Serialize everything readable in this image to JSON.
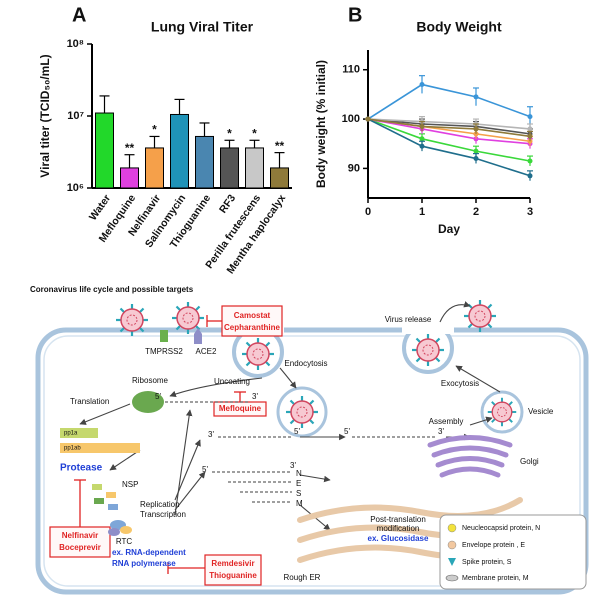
{
  "chart_data": [
    {
      "type": "bar",
      "panel": "A",
      "title": "Lung Viral Titer",
      "y_label": "Viral titer (TCID₅₀/mL)",
      "categories": [
        "Water",
        "Mefloquine",
        "Nelfinavir",
        "Salinomycin",
        "Thioguanine",
        "RF3",
        "Perilla frutescens",
        "Mentha haplocalyx"
      ],
      "values": [
        11000000,
        1900000,
        3600000,
        10500000,
        5200000,
        3600000,
        3600000,
        1900000
      ],
      "errors": [
        8000000,
        1000000,
        1600000,
        6500000,
        2800000,
        1000000,
        1000000,
        1200000
      ],
      "colors": [
        "#22d82a",
        "#e040e0",
        "#f5a04a",
        "#1f93b8",
        "#4a86b0",
        "#555555",
        "#c8c8c8",
        "#8f7a3a"
      ],
      "significance": [
        null,
        "**",
        "*",
        null,
        null,
        "*",
        "*",
        "**"
      ],
      "log_scale": true,
      "ylim": [
        1000000,
        100000000
      ],
      "yticks": [
        {
          "value": 1000000,
          "label": "10⁶"
        },
        {
          "value": 10000000,
          "label": "10⁷"
        },
        {
          "value": 100000000,
          "label": "10⁸"
        }
      ]
    },
    {
      "type": "line",
      "panel": "B",
      "title": "Body Weight",
      "x_label": "Day",
      "y_label": "Body weight (% initial)",
      "x": [
        0,
        1,
        2,
        3
      ],
      "xlim": [
        0,
        3
      ],
      "xticks": [
        0,
        1,
        2,
        3
      ],
      "ylim": [
        84,
        114
      ],
      "yticks": [
        90,
        100,
        110
      ],
      "series": [
        {
          "color": "#3ad83a",
          "values": [
            100,
            96,
            93.5,
            91.5
          ],
          "errors": [
            0,
            1,
            1,
            1
          ]
        },
        {
          "color": "#e040e0",
          "values": [
            100,
            98,
            96,
            95
          ],
          "errors": [
            0,
            1,
            1,
            1
          ]
        },
        {
          "color": "#f5a04a",
          "values": [
            100,
            98.5,
            97,
            95.5
          ],
          "errors": [
            0,
            1,
            1,
            1
          ]
        },
        {
          "color": "#3a95d8",
          "values": [
            100,
            107,
            104.5,
            100.5
          ],
          "errors": [
            0,
            1.8,
            1.8,
            2
          ]
        },
        {
          "color": "#1f6e8c",
          "values": [
            100,
            94.5,
            92,
            88.5
          ],
          "errors": [
            0,
            1,
            1,
            1
          ]
        },
        {
          "color": "#555555",
          "values": [
            100,
            99,
            98.5,
            97
          ],
          "errors": [
            0,
            1,
            1,
            1
          ]
        },
        {
          "color": "#b5b5b5",
          "values": [
            100,
            99.5,
            99,
            98
          ],
          "errors": [
            0,
            1,
            1,
            1
          ]
        },
        {
          "color": "#8f7a3a",
          "values": [
            100,
            98.5,
            98,
            96.5
          ],
          "errors": [
            0,
            1,
            1,
            1
          ]
        }
      ]
    }
  ],
  "diagram": {
    "title": "Coronavirus life cycle and possible targets",
    "drugs": {
      "camostat": "Camostat",
      "cepharanthine": "Cepharanthine",
      "mefloquine": "Mefloquine",
      "nelfinavir": "Nelfinavir",
      "boceprevir": "Boceprevir",
      "remdesivir": "Remdesivir",
      "thioguanine": "Thioguanine"
    },
    "labels": {
      "tmprss2": "TMPRSS2",
      "ace2": "ACE2",
      "endocytosis": "Endocytosis",
      "uncoating": "Uncoating",
      "ribosome": "Ribosome",
      "translation": "Translation",
      "pp1a": "pp1a",
      "pp1ab": "pp1ab",
      "protease": "Protease",
      "nsp": "NSP",
      "replication": "Replication",
      "transcription": "Transcription",
      "rtc": "RTC",
      "rdrp_1": "ex. RNA-dependent",
      "rdrp_2": "RNA polymerase",
      "rough_er": "Rough ER",
      "post_1": "Post-translation",
      "post_2": "modification",
      "glucosidase": "ex. Glucosidase",
      "golgi": "Golgi",
      "assembly": "Assembly",
      "vesicle": "Vesicle",
      "exocytosis": "Exocytosis",
      "virus_release": "Virus release"
    },
    "strand_ends": [
      "5'",
      "3'",
      "3'",
      "5'",
      "5'",
      "3'",
      "5'",
      "3'"
    ],
    "proteins": [
      "N",
      "E",
      "S",
      "M"
    ],
    "legend": [
      "Neucleocapsid protein, N",
      "Envelope protein , E",
      "Spike protein, S",
      "Membrane protein, M"
    ]
  }
}
